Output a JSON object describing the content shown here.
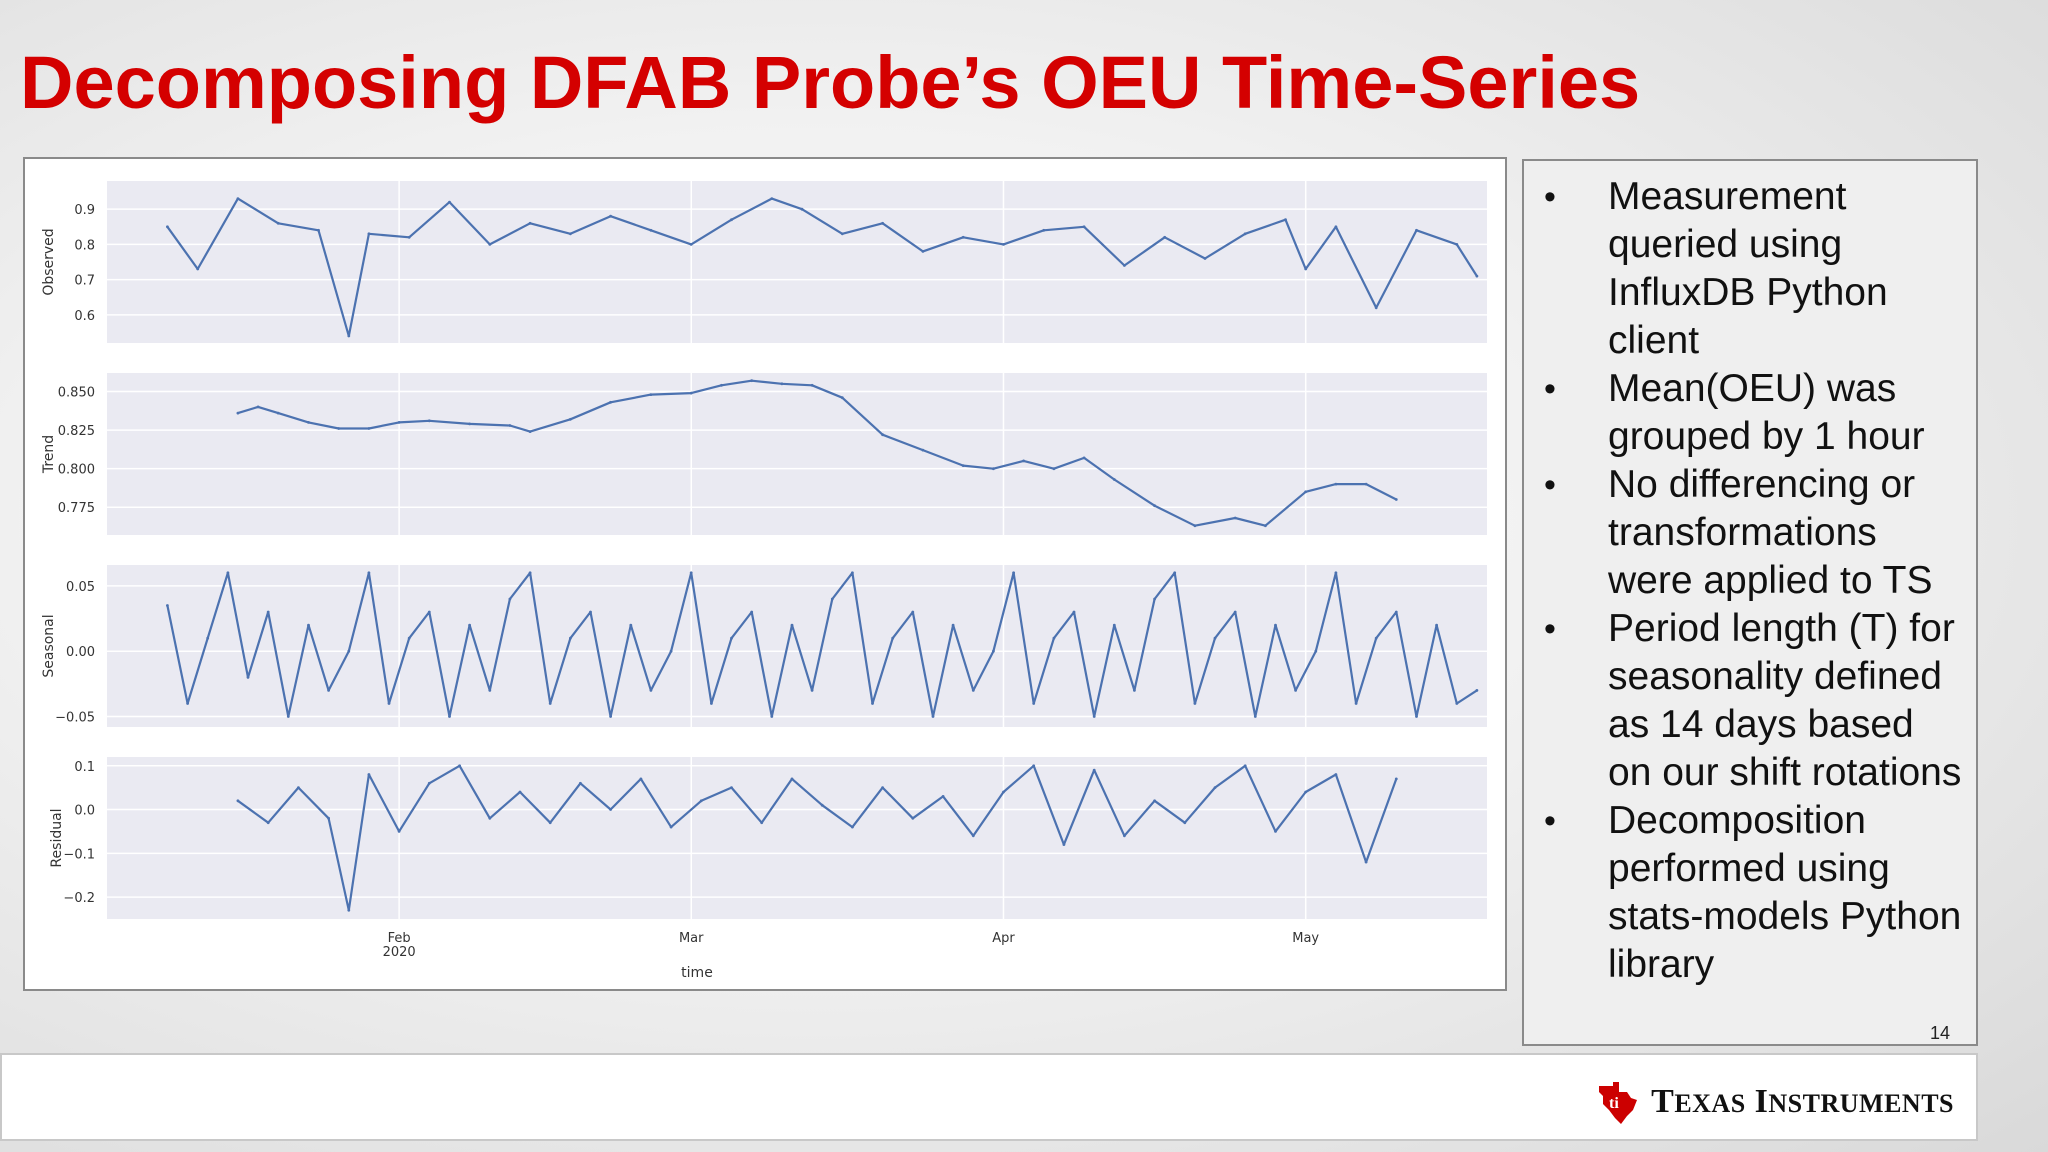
{
  "slide": {
    "title": "Decomposing DFAB Probe’s OEU Time-Series",
    "page_number": "14"
  },
  "notes": [
    "Measurement queried using InfluxDB Python client",
    "Mean(OEU) was grouped by 1 hour",
    "No differencing or transformations were applied to TS",
    "Period length (T) for seasonality defined as 14 days based on our shift rotations",
    "Decomposition performed using stats-models Python library"
  ],
  "footer": {
    "brand_first": "T",
    "brand_first_rest": "EXAS",
    "brand_second": "I",
    "brand_second_rest": "NSTRUMENTS"
  },
  "colors": {
    "title": "#d40000",
    "line": "#4c72b0",
    "plot_bg": "#eaeaf2",
    "logo_red": "#cc0000"
  },
  "chart_data": {
    "type": "line",
    "xlabel": "time",
    "x_ticks": [
      {
        "label": "Feb",
        "sublabel": "2020",
        "date": "2020-02-01"
      },
      {
        "label": "Mar",
        "sublabel": "",
        "date": "2020-03-01"
      },
      {
        "label": "Apr",
        "sublabel": "",
        "date": "2020-04-01"
      },
      {
        "label": "May",
        "sublabel": "",
        "date": "2020-05-01"
      }
    ],
    "xlim": [
      "2020-01-03",
      "2020-05-19"
    ],
    "subplots": [
      {
        "name": "Observed",
        "ylabel": "Observed",
        "ylim": [
          0.52,
          0.98
        ],
        "yticks": [
          {
            "v": 0.9,
            "t": "0.9"
          },
          {
            "v": 0.8,
            "t": "0.8"
          },
          {
            "v": 0.7,
            "t": "0.7"
          },
          {
            "v": 0.6,
            "t": "0.6"
          }
        ],
        "x": [
          "2020-01-09",
          "2020-01-12",
          "2020-01-16",
          "2020-01-20",
          "2020-01-24",
          "2020-01-27",
          "2020-01-29",
          "2020-02-02",
          "2020-02-06",
          "2020-02-10",
          "2020-02-14",
          "2020-02-18",
          "2020-02-22",
          "2020-02-26",
          "2020-03-01",
          "2020-03-05",
          "2020-03-09",
          "2020-03-12",
          "2020-03-16",
          "2020-03-20",
          "2020-03-24",
          "2020-03-28",
          "2020-04-01",
          "2020-04-05",
          "2020-04-09",
          "2020-04-13",
          "2020-04-17",
          "2020-04-21",
          "2020-04-25",
          "2020-04-29",
          "2020-05-01",
          "2020-05-04",
          "2020-05-08",
          "2020-05-12",
          "2020-05-16",
          "2020-05-18"
        ],
        "y": [
          0.85,
          0.73,
          0.93,
          0.86,
          0.84,
          0.54,
          0.83,
          0.82,
          0.92,
          0.8,
          0.86,
          0.83,
          0.88,
          0.84,
          0.8,
          0.87,
          0.93,
          0.9,
          0.83,
          0.86,
          0.78,
          0.82,
          0.8,
          0.84,
          0.85,
          0.74,
          0.82,
          0.76,
          0.83,
          0.87,
          0.73,
          0.85,
          0.62,
          0.84,
          0.8,
          0.71
        ]
      },
      {
        "name": "Trend",
        "ylabel": "Trend",
        "ylim": [
          0.757,
          0.862
        ],
        "yticks": [
          {
            "v": 0.85,
            "t": "0.850"
          },
          {
            "v": 0.825,
            "t": "0.825"
          },
          {
            "v": 0.8,
            "t": "0.800"
          },
          {
            "v": 0.775,
            "t": "0.775"
          }
        ],
        "x": [
          "2020-01-16",
          "2020-01-18",
          "2020-01-20",
          "2020-01-23",
          "2020-01-26",
          "2020-01-29",
          "2020-02-01",
          "2020-02-04",
          "2020-02-08",
          "2020-02-12",
          "2020-02-14",
          "2020-02-18",
          "2020-02-22",
          "2020-02-26",
          "2020-03-01",
          "2020-03-04",
          "2020-03-07",
          "2020-03-10",
          "2020-03-13",
          "2020-03-16",
          "2020-03-20",
          "2020-03-24",
          "2020-03-28",
          "2020-03-31",
          "2020-04-03",
          "2020-04-06",
          "2020-04-09",
          "2020-04-12",
          "2020-04-16",
          "2020-04-20",
          "2020-04-24",
          "2020-04-27",
          "2020-05-01",
          "2020-05-04",
          "2020-05-07",
          "2020-05-10"
        ],
        "y": [
          0.836,
          0.84,
          0.836,
          0.83,
          0.826,
          0.826,
          0.83,
          0.831,
          0.829,
          0.828,
          0.824,
          0.832,
          0.843,
          0.848,
          0.849,
          0.854,
          0.857,
          0.855,
          0.854,
          0.846,
          0.822,
          0.812,
          0.802,
          0.8,
          0.805,
          0.8,
          0.807,
          0.793,
          0.776,
          0.763,
          0.768,
          0.763,
          0.785,
          0.79,
          0.79,
          0.78
        ]
      },
      {
        "name": "Seasonal",
        "ylabel": "Seasonal",
        "ylim": [
          -0.058,
          0.066
        ],
        "yticks": [
          {
            "v": 0.05,
            "t": "0.05"
          },
          {
            "v": 0.0,
            "t": "0.00"
          },
          {
            "v": -0.05,
            "t": "−0.05"
          }
        ],
        "x": [
          "2020-01-09",
          "2020-01-11",
          "2020-01-13",
          "2020-01-15",
          "2020-01-17",
          "2020-01-19",
          "2020-01-21",
          "2020-01-23",
          "2020-01-25",
          "2020-01-27",
          "2020-01-29",
          "2020-01-31",
          "2020-02-02",
          "2020-02-04",
          "2020-02-06",
          "2020-02-08",
          "2020-02-10",
          "2020-02-12",
          "2020-02-14",
          "2020-02-16",
          "2020-02-18",
          "2020-02-20",
          "2020-02-22",
          "2020-02-24",
          "2020-02-26",
          "2020-02-28",
          "2020-03-01",
          "2020-03-03",
          "2020-03-05",
          "2020-03-07",
          "2020-03-09",
          "2020-03-11",
          "2020-03-13",
          "2020-03-15",
          "2020-03-17",
          "2020-03-19",
          "2020-03-21",
          "2020-03-23",
          "2020-03-25",
          "2020-03-27",
          "2020-03-29",
          "2020-03-31",
          "2020-04-02",
          "2020-04-04",
          "2020-04-06",
          "2020-04-08",
          "2020-04-10",
          "2020-04-12",
          "2020-04-14",
          "2020-04-16",
          "2020-04-18",
          "2020-04-20",
          "2020-04-22",
          "2020-04-24",
          "2020-04-26",
          "2020-04-28",
          "2020-04-30",
          "2020-05-02",
          "2020-05-04",
          "2020-05-06",
          "2020-05-08",
          "2020-05-10",
          "2020-05-12",
          "2020-05-14",
          "2020-05-16",
          "2020-05-18"
        ],
        "y": [
          0.035,
          -0.04,
          0.01,
          0.06,
          -0.02,
          0.03,
          -0.05,
          0.02,
          -0.03,
          0.0,
          0.06,
          -0.04,
          0.01,
          0.03,
          -0.05,
          0.02,
          -0.03,
          0.04,
          0.06,
          -0.04,
          0.01,
          0.03,
          -0.05,
          0.02,
          -0.03,
          0.0,
          0.06,
          -0.04,
          0.01,
          0.03,
          -0.05,
          0.02,
          -0.03,
          0.04,
          0.06,
          -0.04,
          0.01,
          0.03,
          -0.05,
          0.02,
          -0.03,
          0.0,
          0.06,
          -0.04,
          0.01,
          0.03,
          -0.05,
          0.02,
          -0.03,
          0.04,
          0.06,
          -0.04,
          0.01,
          0.03,
          -0.05,
          0.02,
          -0.03,
          0.0,
          0.06,
          -0.04,
          0.01,
          0.03,
          -0.05,
          0.02,
          -0.04,
          -0.03
        ]
      },
      {
        "name": "Residual",
        "ylabel": "Residual",
        "ylim": [
          -0.25,
          0.12
        ],
        "yticks": [
          {
            "v": 0.1,
            "t": "0.1"
          },
          {
            "v": 0.0,
            "t": "0.0"
          },
          {
            "v": -0.1,
            "t": "−0.1"
          },
          {
            "v": -0.2,
            "t": "−0.2"
          }
        ],
        "x": [
          "2020-01-16",
          "2020-01-19",
          "2020-01-22",
          "2020-01-25",
          "2020-01-27",
          "2020-01-29",
          "2020-02-01",
          "2020-02-04",
          "2020-02-07",
          "2020-02-10",
          "2020-02-13",
          "2020-02-16",
          "2020-02-19",
          "2020-02-22",
          "2020-02-25",
          "2020-02-28",
          "2020-03-02",
          "2020-03-05",
          "2020-03-08",
          "2020-03-11",
          "2020-03-14",
          "2020-03-17",
          "2020-03-20",
          "2020-03-23",
          "2020-03-26",
          "2020-03-29",
          "2020-04-01",
          "2020-04-04",
          "2020-04-07",
          "2020-04-10",
          "2020-04-13",
          "2020-04-16",
          "2020-04-19",
          "2020-04-22",
          "2020-04-25",
          "2020-04-28",
          "2020-05-01",
          "2020-05-04",
          "2020-05-07",
          "2020-05-10"
        ],
        "y": [
          0.02,
          -0.03,
          0.05,
          -0.02,
          -0.23,
          0.08,
          -0.05,
          0.06,
          0.1,
          -0.02,
          0.04,
          -0.03,
          0.06,
          0.0,
          0.07,
          -0.04,
          0.02,
          0.05,
          -0.03,
          0.07,
          0.01,
          -0.04,
          0.05,
          -0.02,
          0.03,
          -0.06,
          0.04,
          0.1,
          -0.08,
          0.09,
          -0.06,
          0.02,
          -0.03,
          0.05,
          0.1,
          -0.05,
          0.04,
          0.08,
          -0.12,
          0.07
        ]
      }
    ]
  }
}
